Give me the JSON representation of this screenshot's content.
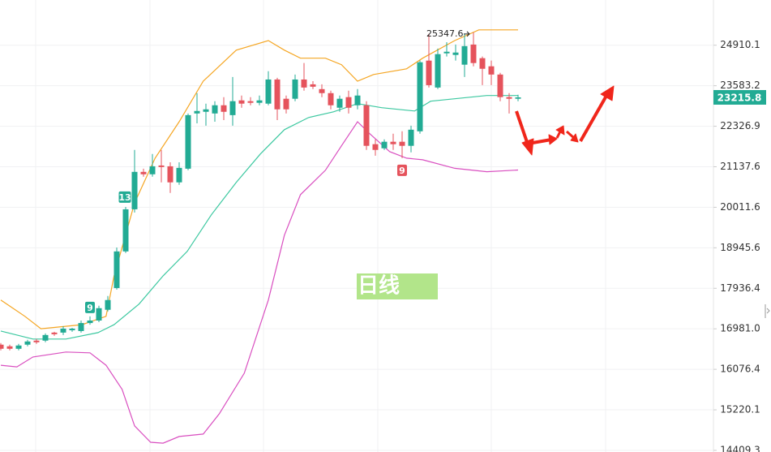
{
  "chart_data": {
    "type": "candlestick",
    "log_scale": true,
    "grid": true,
    "up_color": "#22ab94",
    "down_color": "#e5535c",
    "ylim": [
      14377,
      26480
    ],
    "yticks": [
      24910.1,
      23583.2,
      22326.9,
      21137.6,
      20011.6,
      18945.6,
      17936.4,
      {
        "value": 16981.0,
        "label": "16981.0"
      },
      16076.4,
      15220.1,
      14409.3
    ],
    "open": [
      16621,
      16584,
      16529,
      16621,
      16712,
      16712,
      16894,
      16894,
      16948,
      16930,
      17114,
      17172,
      17423,
      17943,
      18853,
      19957,
      20992,
      20924,
      21174,
      21151,
      20697,
      21083,
      22716,
      22767,
      22716,
      22969,
      22665,
      23121,
      23096,
      23045,
      23020,
      23783,
      23172,
      23172,
      23783,
      23628,
      23476,
      23349,
      22893,
      23223,
      22969,
      22969,
      21792,
      21672,
      21864,
      21864,
      21744,
      22175,
      24398,
      23526,
      24639,
      24585,
      24264,
      24933,
      24478,
      24211,
      23943,
      23223,
      23172
    ],
    "high": [
      16657,
      16621,
      16639,
      16730,
      16748,
      16876,
      16912,
      17040,
      17003,
      17172,
      17269,
      17519,
      17750,
      18954,
      20022,
      21624,
      21083,
      21505,
      21624,
      21265,
      21265,
      22716,
      23349,
      23020,
      23096,
      23223,
      23863,
      23273,
      23223,
      23273,
      24050,
      23836,
      23273,
      23943,
      24318,
      23729,
      23628,
      23425,
      23273,
      23425,
      23476,
      23096,
      21936,
      21936,
      22104,
      22175,
      22343,
      24398,
      25300,
      24799,
      25013,
      24933,
      25300,
      25347.6,
      24532,
      24398,
      23997,
      23349,
      23299
    ],
    "low": [
      16493,
      16493,
      16493,
      16584,
      16639,
      16675,
      16821,
      16839,
      16912,
      16894,
      17076,
      17133,
      17384,
      17904,
      18812,
      19871,
      20856,
      20856,
      20697,
      20402,
      20629,
      21038,
      22415,
      22343,
      22463,
      22514,
      22343,
      22893,
      22969,
      22969,
      22969,
      22514,
      22716,
      23096,
      23425,
      23476,
      23223,
      22843,
      22767,
      22716,
      22843,
      21624,
      21457,
      21624,
      21624,
      21385,
      21553,
      22104,
      23526,
      23476,
      24532,
      24398,
      23863,
      24211,
      23602,
      23602,
      23096,
      22716,
      23096
    ],
    "close": [
      16529,
      16529,
      16602,
      16693,
      16675,
      16839,
      16857,
      16985,
      16985,
      17114,
      17172,
      17461,
      17654,
      18853,
      19957,
      20992,
      20924,
      21151,
      21129,
      20697,
      21106,
      22665,
      22792,
      22843,
      22969,
      22767,
      23096,
      23020,
      23045,
      23121,
      23783,
      22843,
      22843,
      23783,
      23526,
      23552,
      23349,
      22969,
      23172,
      22893,
      23273,
      21744,
      21624,
      21864,
      21792,
      21744,
      22223,
      24344,
      23602,
      24612,
      24692,
      24665,
      24880,
      24318,
      24130,
      23943,
      23223,
      23172,
      23215.8
    ],
    "overlays": [
      {
        "color": "#f5a623",
        "x": [
          0,
          2.7,
          4.5,
          9.1,
          11.8,
          12.7,
          15,
          17.3,
          20,
          22.7,
          26.4,
          30,
          31.8,
          33.6,
          36.4,
          38.2,
          40,
          41.8,
          45.5,
          47.3,
          50.9,
          53.6,
          58
        ],
        "values": [
          17654,
          17269,
          16983,
          17076,
          17269,
          18242,
          20129,
          21385,
          22463,
          23729,
          24746,
          25067,
          24746,
          24478,
          24478,
          24264,
          23729,
          23943,
          24130,
          24478,
          25067,
          25434,
          25434
        ]
      },
      {
        "color": "#3cc8a0",
        "x": [
          0,
          3.6,
          7.3,
          10.9,
          12.7,
          15.5,
          18.2,
          20.9,
          23.6,
          26.4,
          29.1,
          31.8,
          34.5,
          37.3,
          40,
          42.7,
          46.4,
          48.2,
          50.9,
          54.5,
          58
        ],
        "values": [
          16930,
          16748,
          16748,
          16894,
          17076,
          17558,
          18242,
          18853,
          19807,
          20697,
          21505,
          22223,
          22590,
          22767,
          23020,
          22893,
          22792,
          23096,
          23172,
          23273,
          23273
        ]
      },
      {
        "color": "#d94fc0",
        "x": [
          0,
          1.8,
          3.6,
          7.3,
          10,
          11.8,
          13.6,
          15,
          16.8,
          18.2,
          20,
          22.7,
          24.5,
          27.3,
          30,
          31.8,
          33.6,
          36.4,
          38.2,
          40,
          41.4,
          43.6,
          45.5,
          47.3,
          50.9,
          54.5,
          58
        ],
        "values": [
          16165,
          16130,
          16347,
          16457,
          16438,
          16165,
          15647,
          14894,
          14567,
          14550,
          14681,
          14730,
          15139,
          15992,
          17654,
          19271,
          20356,
          21038,
          21744,
          22463,
          22095,
          21576,
          21385,
          21337,
          21094,
          20997,
          21046
        ]
      }
    ],
    "markers": [
      {
        "text": "9",
        "index": 10,
        "color": "#22ab94",
        "side": "above"
      },
      {
        "text": "13",
        "index": 14,
        "color": "#22ab94",
        "side": "left"
      },
      {
        "text": "9",
        "index": 45,
        "color": "#e5535c",
        "side": "below"
      }
    ],
    "max_index": 53,
    "watermark": "日线"
  }
}
